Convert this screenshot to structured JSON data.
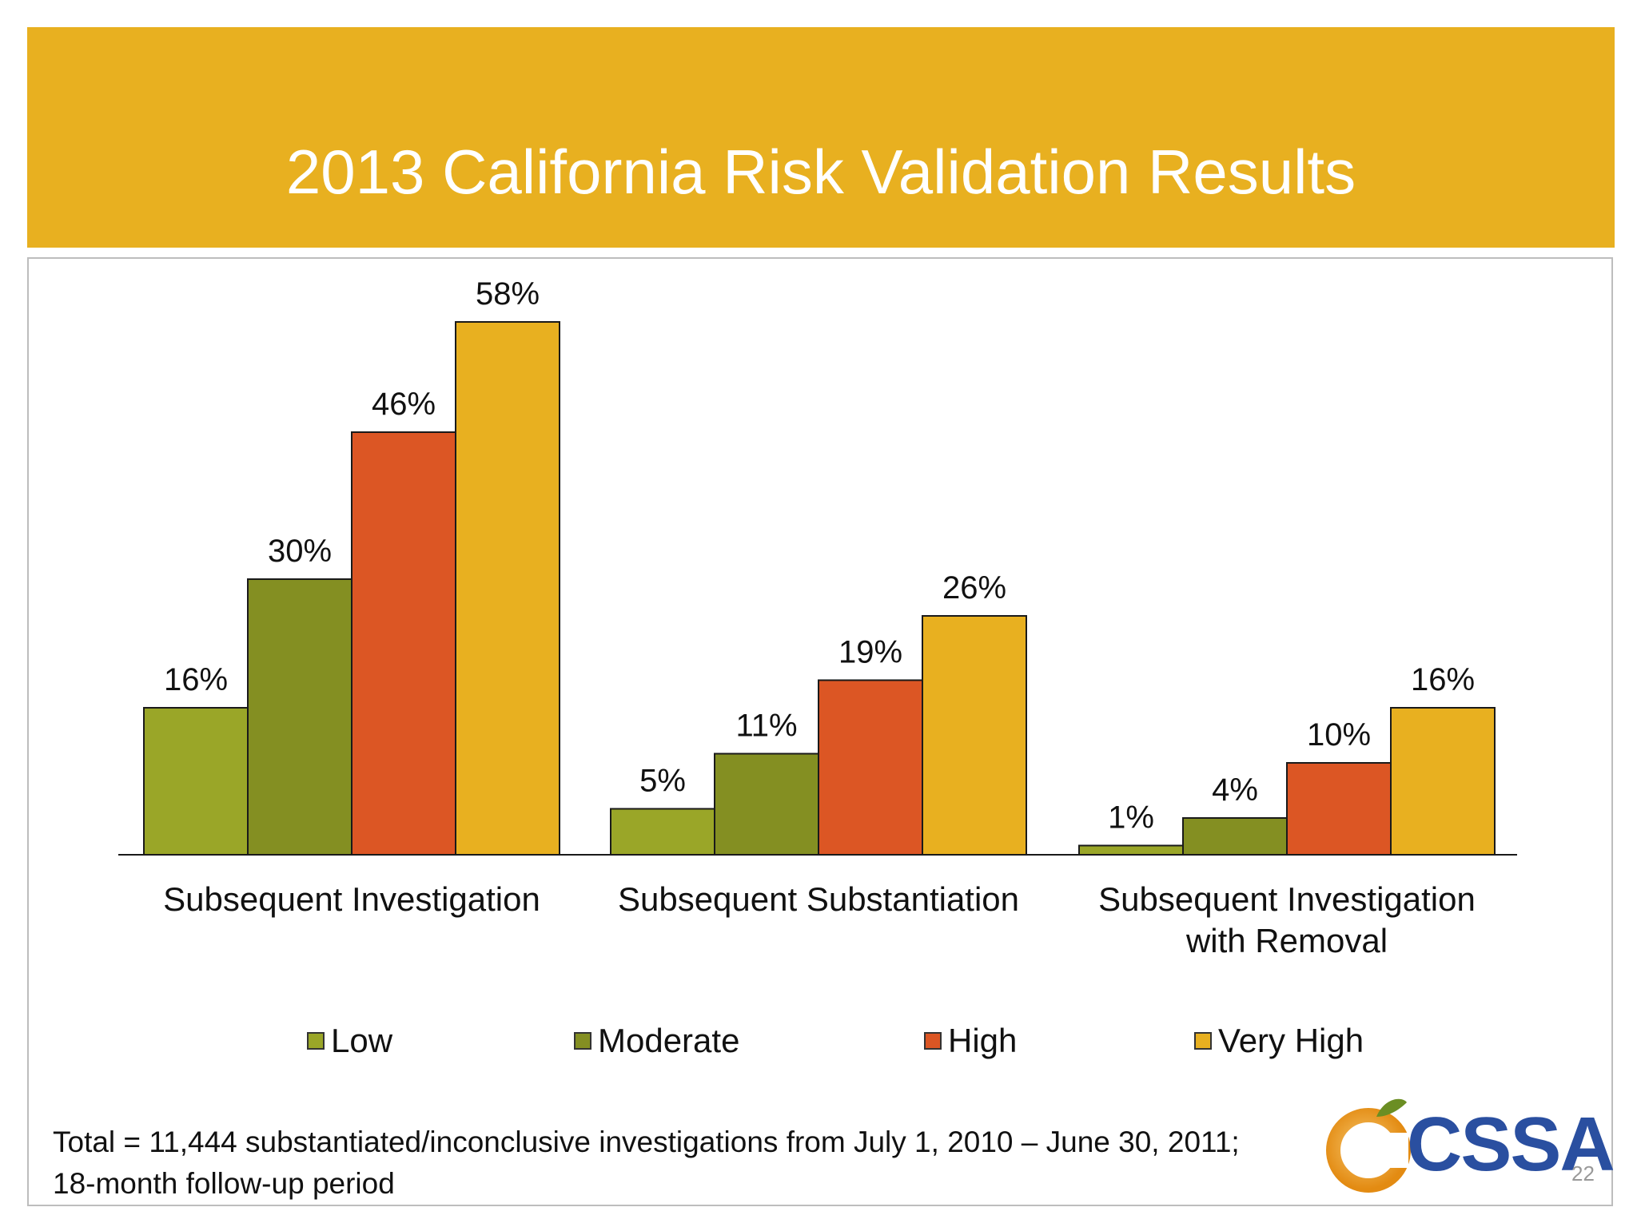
{
  "slide": {
    "title": "2013 California Risk Validation Results",
    "footnote": "Total = 11,444 substantiated/inconclusive investigations from July 1, 2010 – June 30, 2011; 18-month follow-up period",
    "logo_text": "CSSA",
    "page_number": "22"
  },
  "colors": {
    "banner": "#E8B020",
    "low": "#9AA628",
    "moderate": "#848F22",
    "high": "#DC5624",
    "very_high": "#E8B020"
  },
  "chart_data": {
    "type": "bar",
    "title": "",
    "xlabel": "",
    "ylabel": "",
    "ylim": [
      0,
      60
    ],
    "grid": false,
    "legend_position": "bottom",
    "categories": [
      [
        "Subsequent Investigation"
      ],
      [
        "Subsequent Substantiation"
      ],
      [
        "Subsequent Investigation",
        "with Removal"
      ]
    ],
    "series": [
      {
        "name": "Low",
        "color": "#9AA628",
        "values": [
          16,
          5,
          1
        ],
        "labels": [
          "16%",
          "5%",
          "1%"
        ]
      },
      {
        "name": "Moderate",
        "color": "#848F22",
        "values": [
          30,
          11,
          4
        ],
        "labels": [
          "30%",
          "11%",
          "4%"
        ]
      },
      {
        "name": "High",
        "color": "#DC5624",
        "values": [
          46,
          19,
          10
        ],
        "labels": [
          "46%",
          "19%",
          "10%"
        ]
      },
      {
        "name": "Very High",
        "color": "#E8B020",
        "values": [
          58,
          26,
          16
        ],
        "labels": [
          "58%",
          "26%",
          "16%"
        ]
      }
    ]
  }
}
